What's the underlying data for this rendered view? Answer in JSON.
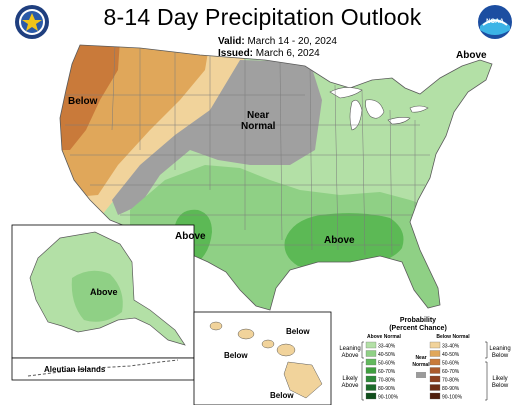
{
  "title": "8-14 Day Precipitation Outlook",
  "valid": {
    "label": "Valid:",
    "value": "March 14 - 20, 2024"
  },
  "issued": {
    "label": "Issued:",
    "value": "March 6, 2024"
  },
  "logo_left": {
    "icon": "doc-seal-icon",
    "colors": [
      "#1f3f7f",
      "#f0c419"
    ]
  },
  "logo_right": {
    "icon": "noaa-logo-icon",
    "text": "NOAA",
    "colors": [
      "#1c4ea1",
      "#3cb4e6"
    ]
  },
  "map_labels": {
    "conus_below": "Below",
    "near_normal": "Near\nNormal",
    "above_ne": "Above",
    "above_tx": "Above",
    "above_se": "Above",
    "alaska_above": "Above",
    "hawaii_below_1": "Below",
    "hawaii_below_2": "Below",
    "hawaii_below_3": "Below",
    "aleutian": "Aleutian Islands"
  },
  "legend": {
    "title_line1": "Probability",
    "title_line2": "(Percent Chance)",
    "above_header": "Above Normal",
    "below_header": "Below Normal",
    "near_normal": "Near\nNormal",
    "leaning_above": "Leaning\nAbove",
    "likely_above": "Likely\nAbove",
    "leaning_below": "Leaning\nBelow",
    "likely_below": "Likely\nBelow",
    "ranges": [
      "33-40%",
      "40-50%",
      "50-60%",
      "60-70%",
      "70-80%",
      "80-90%",
      "90-100%"
    ],
    "above_colors": [
      "#b3e0a6",
      "#8fd085",
      "#62b95d",
      "#3f9f3f",
      "#2e8a3a",
      "#1c6b2a",
      "#0f4d1b"
    ],
    "below_colors": [
      "#f1d39b",
      "#e0a75a",
      "#c97a3a",
      "#ab5a2c",
      "#8e4120",
      "#6e2f17",
      "#4f1f0e"
    ],
    "near_color": "#9b9b9b"
  },
  "category_colors": {
    "above_33_40": "#b3e0a6",
    "above_40_50": "#8fd085",
    "above_50_60": "#5cb955",
    "below_33_40": "#f1d39b",
    "below_40_50": "#e0a75a",
    "below_50_60": "#c97a3a",
    "near_normal": "#a0a0a0",
    "water": "#ffffff",
    "border": "#5a5a5a"
  }
}
